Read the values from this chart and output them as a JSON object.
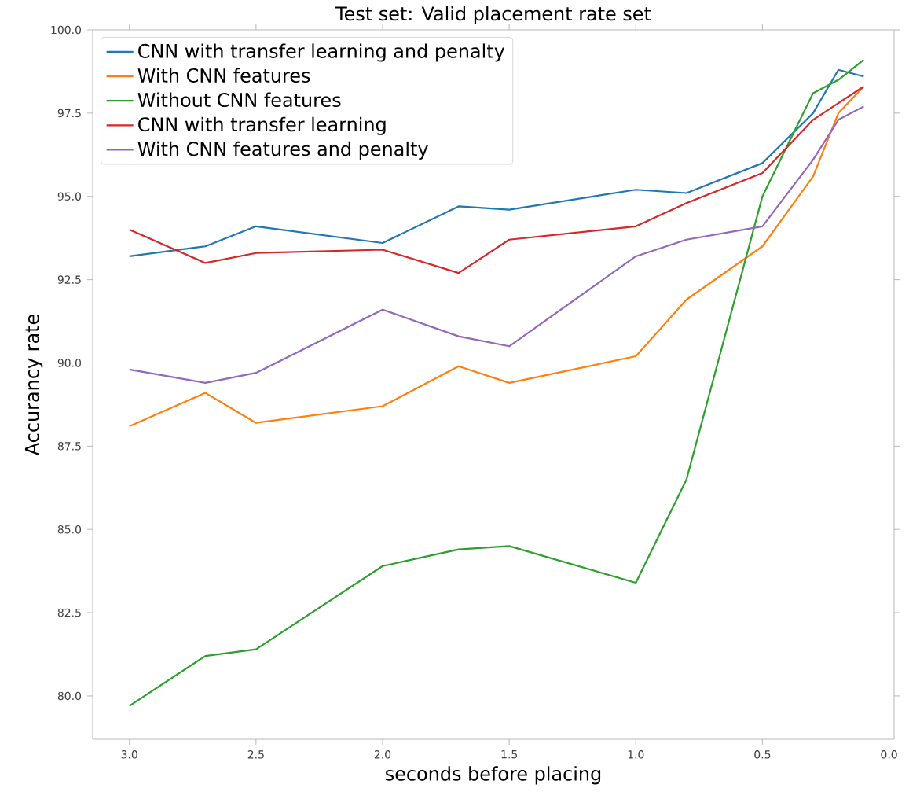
{
  "chart_data": {
    "type": "line",
    "title": "Test set: Valid placement rate set",
    "xlabel": "seconds before placing",
    "ylabel": "Accurancy rate",
    "x": [
      3.0,
      2.7,
      2.5,
      2.0,
      1.7,
      1.5,
      1.0,
      0.8,
      0.5,
      0.3,
      0.2,
      0.1
    ],
    "series": [
      {
        "name": "CNN with transfer learning and penalty",
        "color": "#1f77b4",
        "values": [
          93.2,
          93.5,
          94.1,
          93.6,
          94.7,
          94.6,
          95.2,
          95.1,
          96.0,
          97.5,
          98.8,
          98.6
        ]
      },
      {
        "name": "With CNN features",
        "color": "#ff7f0e",
        "values": [
          88.1,
          89.1,
          88.2,
          88.7,
          89.9,
          89.4,
          90.2,
          91.9,
          93.5,
          95.6,
          97.5,
          98.3
        ]
      },
      {
        "name": "Without CNN features",
        "color": "#2ca02c",
        "values": [
          79.7,
          81.2,
          81.4,
          83.9,
          84.4,
          84.5,
          83.4,
          86.5,
          95.0,
          98.1,
          98.5,
          99.1
        ]
      },
      {
        "name": "CNN with transfer learning",
        "color": "#d62728",
        "values": [
          94.0,
          93.0,
          93.3,
          93.4,
          92.7,
          93.7,
          94.1,
          94.8,
          95.7,
          97.3,
          97.8,
          98.3
        ]
      },
      {
        "name": "With CNN features and penalty",
        "color": "#9467bd",
        "values": [
          89.8,
          89.4,
          89.7,
          91.6,
          90.8,
          90.5,
          93.2,
          93.7,
          94.1,
          96.1,
          97.3,
          97.7
        ]
      }
    ],
    "xlim": [
      3.145,
      -0.02
    ],
    "ylim": [
      78.7,
      100.0
    ],
    "xticks": [
      {
        "value": 3.0,
        "label": "3.0"
      },
      {
        "value": 2.5,
        "label": "2.5"
      },
      {
        "value": 2.0,
        "label": "2.0"
      },
      {
        "value": 1.5,
        "label": "1.5"
      },
      {
        "value": 1.0,
        "label": "1.0"
      },
      {
        "value": 0.5,
        "label": "0.5"
      },
      {
        "value": 0.0,
        "label": "0.0"
      }
    ],
    "yticks": [
      {
        "value": 80.0,
        "label": "80.0"
      },
      {
        "value": 82.5,
        "label": "82.5"
      },
      {
        "value": 85.0,
        "label": "85.0"
      },
      {
        "value": 87.5,
        "label": "87.5"
      },
      {
        "value": 90.0,
        "label": "90.0"
      },
      {
        "value": 92.5,
        "label": "92.5"
      },
      {
        "value": 95.0,
        "label": "95.0"
      },
      {
        "value": 97.5,
        "label": "97.5"
      },
      {
        "value": 100.0,
        "label": "100.0"
      }
    ],
    "legend": "top left",
    "grid": false,
    "marker": "none",
    "line_style": "solid"
  }
}
